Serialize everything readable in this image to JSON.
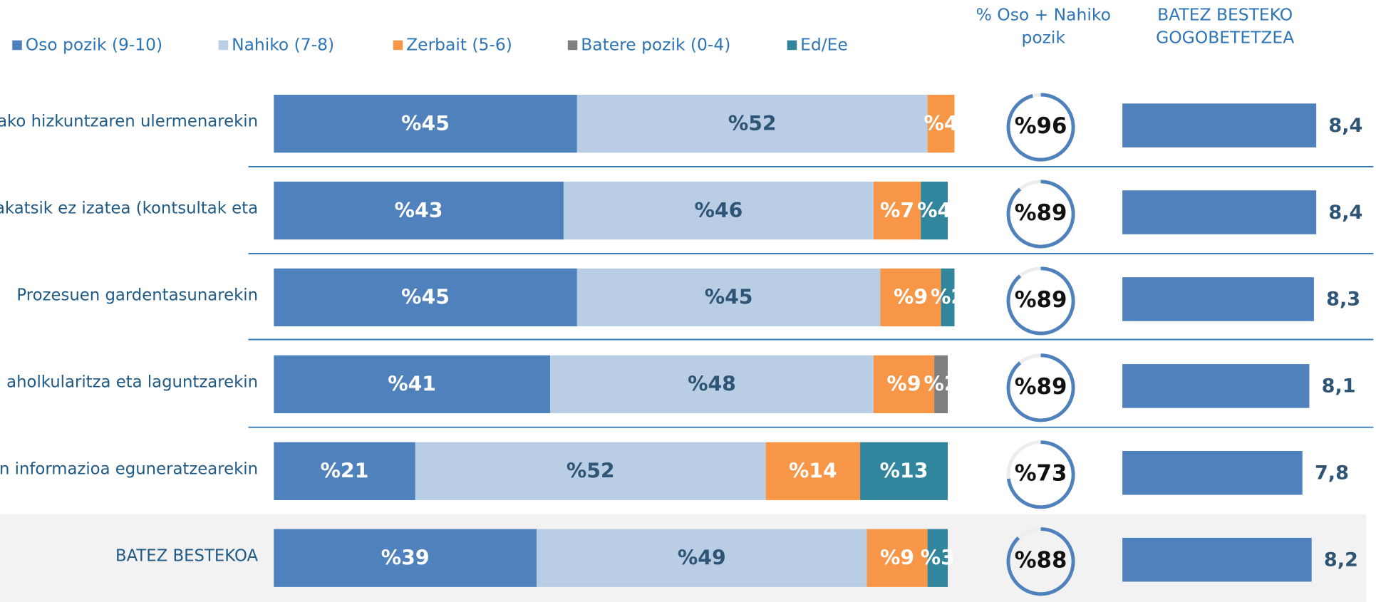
{
  "chart_data": [
    {
      "type": "stacked-barh",
      "categories": [
        "ako hizkuntzaren ulermenarekin",
        "akatsik ez izatea (kontsultak eta",
        "Prozesuen gardentasunarekin",
        "aholkularitza eta laguntzarekin",
        "n informazioa eguneratzearekin",
        "BATEZ BESTEKOA"
      ],
      "xlim": [
        0,
        100
      ],
      "series": [
        {
          "name": "Oso pozik (9-10)",
          "color": "#4f81bd",
          "label_color": "#ffffff",
          "values": [
            45,
            43,
            45,
            41,
            21,
            39
          ],
          "value_labels": [
            "%45",
            "%43",
            "%45",
            "%41",
            "%21",
            "%39"
          ]
        },
        {
          "name": "Nahiko (7-8)",
          "color": "#b9cde5",
          "label_color": "#2f5576",
          "values": [
            52,
            46,
            45,
            48,
            52,
            49
          ],
          "value_labels": [
            "%52",
            "%46",
            "%45",
            "%48",
            "%52",
            "%49"
          ]
        },
        {
          "name": "Zerbait (5-6)",
          "color": "#f79646",
          "label_color": "#ffffff",
          "values": [
            4,
            7,
            9,
            9,
            14,
            9
          ],
          "value_labels": [
            "%4",
            "%7",
            "%9",
            "%9",
            "%14",
            "%9"
          ]
        },
        {
          "name": "Batere pozik (0-4)",
          "color": "#7f7f7f",
          "label_color": "#ffffff",
          "values": [
            null,
            null,
            null,
            2,
            null,
            null
          ],
          "value_labels": [
            null,
            null,
            null,
            "%2",
            null,
            null
          ]
        },
        {
          "name": "Ed/Ee",
          "color": "#31859c",
          "label_color": "#ffffff",
          "values": [
            null,
            4,
            2,
            null,
            13,
            3
          ],
          "value_labels": [
            null,
            "%4",
            "%2",
            null,
            "%13",
            "%3"
          ]
        }
      ]
    },
    {
      "type": "donut",
      "title": "% Oso + Nahiko pozik",
      "ylim": [
        0,
        100
      ],
      "color": "#4f81bd",
      "values": [
        96,
        89,
        89,
        89,
        73,
        88
      ],
      "value_labels": [
        "%96",
        "%89",
        "%89",
        "%89",
        "%73",
        "%88"
      ]
    },
    {
      "type": "barh",
      "title": "BATEZ BESTEKO GOGOBETETZEA",
      "xlim": [
        0,
        10
      ],
      "color": "#4f81bd",
      "values": [
        8.4,
        8.4,
        8.3,
        8.1,
        7.8,
        8.2
      ],
      "value_labels": [
        "8,4",
        "8,4",
        "8,3",
        "8,1",
        "7,8",
        "8,2"
      ]
    }
  ]
}
